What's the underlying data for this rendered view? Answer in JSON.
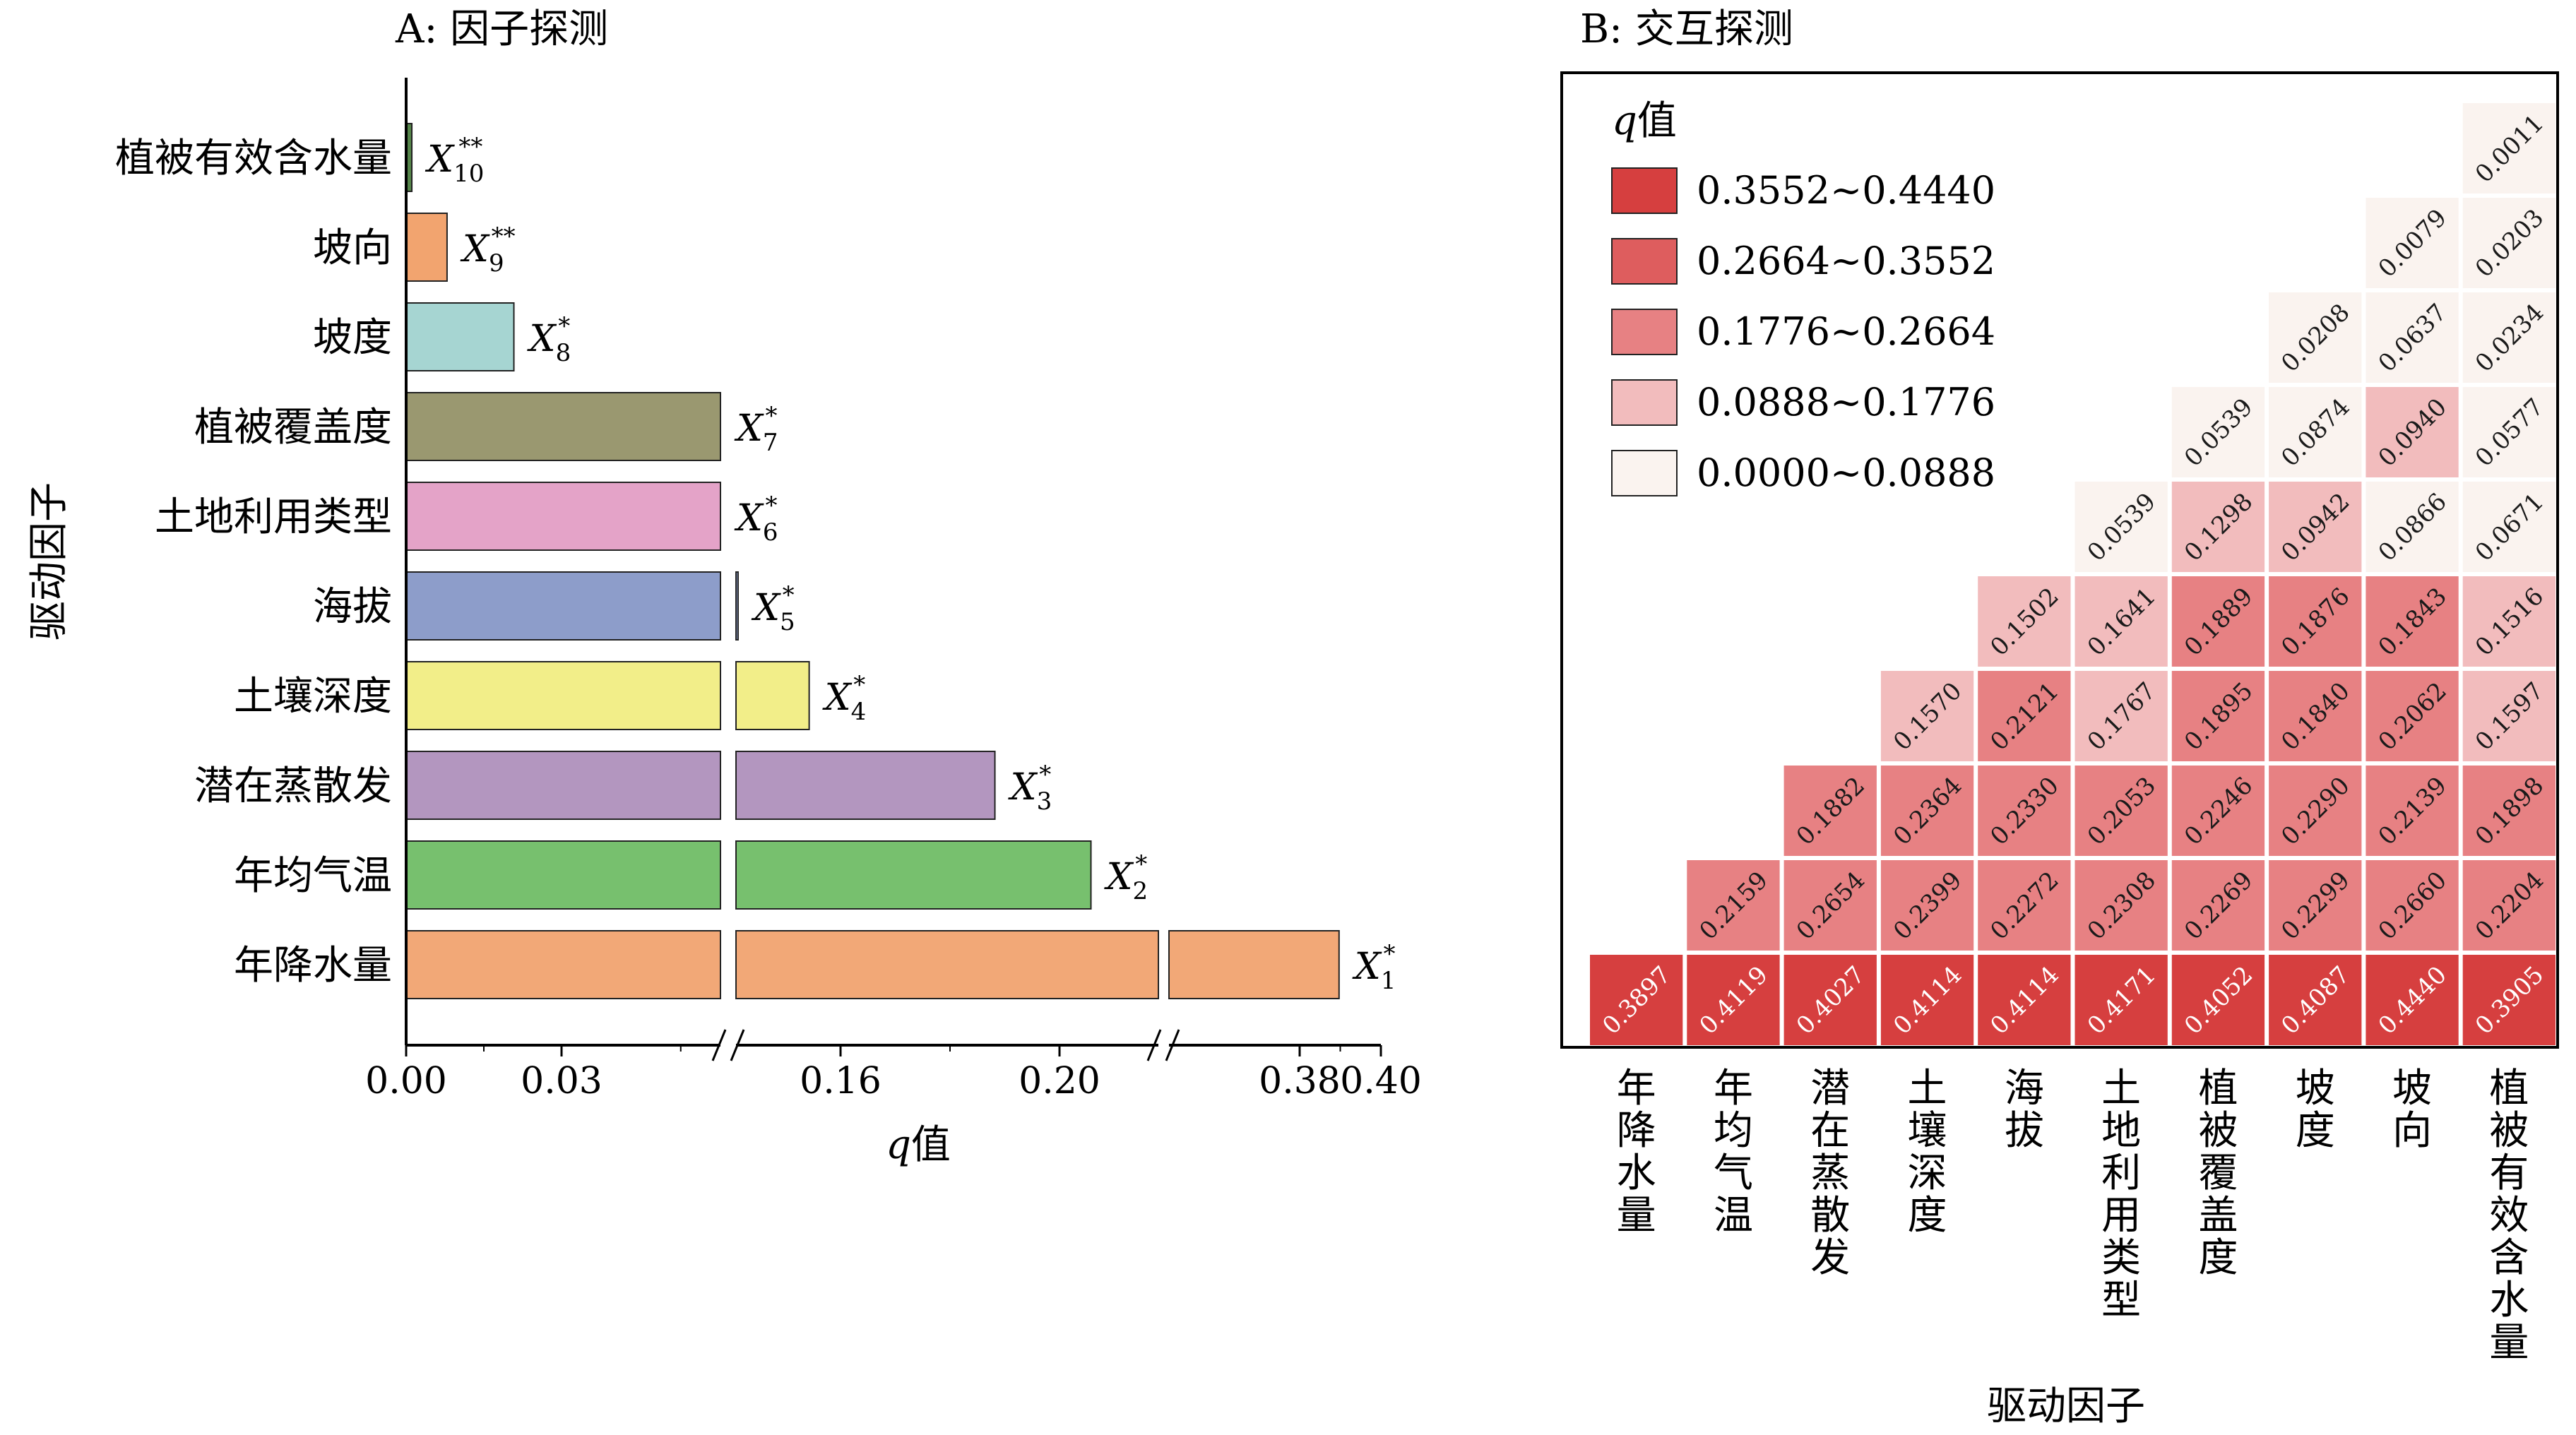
{
  "chart_data": [
    {
      "type": "bar",
      "orientation": "horizontal",
      "title": "A: 因子探测",
      "xlabel_italic": "q",
      "xlabel_suffix": "值",
      "ylabel": "驱动因子",
      "xlim": [
        0.0,
        0.4
      ],
      "axis_breaks": [
        [
          0.05,
          0.15
        ],
        [
          0.25,
          0.37
        ]
      ],
      "xticks": [
        "0.00",
        "0.03",
        "0.16",
        "0.20",
        "0.38",
        "0.40"
      ],
      "xtick_values": [
        0.0,
        0.03,
        0.16,
        0.2,
        0.38,
        0.4
      ],
      "break_mark": "//",
      "categories": [
        "植被有效含水量",
        "坡向",
        "坡度",
        "植被覆盖度",
        "土地利用类型",
        "海拔",
        "土壤深度",
        "潜在蒸散发",
        "年均气温",
        "年降水量"
      ],
      "values": [
        0.0011,
        0.0079,
        0.0208,
        0.0539,
        0.0539,
        0.1502,
        0.157,
        0.1882,
        0.2159,
        0.3897
      ],
      "colors": [
        "#55854a",
        "#f2a46f",
        "#a6d5d2",
        "#9a9870",
        "#e4a3c8",
        "#8d9dca",
        "#f2ee89",
        "#b396bf",
        "#77c06e",
        "#f2a877"
      ],
      "bar_labels": [
        {
          "base": "X",
          "sub": "10",
          "sup": "**"
        },
        {
          "base": "X",
          "sub": "9",
          "sup": "**"
        },
        {
          "base": "X",
          "sub": "8",
          "sup": "*"
        },
        {
          "base": "X",
          "sub": "7",
          "sup": "*"
        },
        {
          "base": "X",
          "sub": "6",
          "sup": "*"
        },
        {
          "base": "X",
          "sub": "5",
          "sup": "*"
        },
        {
          "base": "X",
          "sub": "4",
          "sup": "*"
        },
        {
          "base": "X",
          "sub": "3",
          "sup": "*"
        },
        {
          "base": "X",
          "sub": "2",
          "sup": "*"
        },
        {
          "base": "X",
          "sub": "1",
          "sup": "*"
        }
      ]
    },
    {
      "type": "heatmap",
      "title": "B: 交互探测",
      "xlabel": "驱动因子",
      "categories": [
        "年降水量",
        "年均气温",
        "潜在蒸散发",
        "土壤深度",
        "海拔",
        "土地利用类型",
        "植被覆盖度",
        "坡度",
        "坡向",
        "植被有效含水量"
      ],
      "matrix": [
        [
          "0.3897",
          "0.4119",
          "0.4027",
          "0.4114",
          "0.4114",
          "0.4171",
          "0.4052",
          "0.4087",
          "0.4440",
          "0.3905"
        ],
        [
          "0.2159",
          "0.2654",
          "0.2399",
          "0.2272",
          "0.2308",
          "0.2269",
          "0.2299",
          "0.2660",
          "0.2204"
        ],
        [
          "0.1882",
          "0.2364",
          "0.2330",
          "0.2053",
          "0.2246",
          "0.2290",
          "0.2139",
          "0.1898"
        ],
        [
          "0.1570",
          "0.2121",
          "0.1767",
          "0.1895",
          "0.1840",
          "0.2062",
          "0.1597"
        ],
        [
          "0.1502",
          "0.1641",
          "0.1889",
          "0.1876",
          "0.1843",
          "0.1516"
        ],
        [
          "0.0539",
          "0.1298",
          "0.0942",
          "0.0866",
          "0.0671"
        ],
        [
          "0.0539",
          "0.0874",
          "0.0940",
          "0.0577"
        ],
        [
          "0.0208",
          "0.0637",
          "0.0234"
        ],
        [
          "0.0079",
          "0.0203"
        ],
        [
          "0.0011"
        ]
      ],
      "legend": {
        "title_italic": "q",
        "title_suffix": "值",
        "placement": "top-left",
        "items": [
          {
            "label": "0.3552~0.4440",
            "color": "#d63f3f"
          },
          {
            "label": "0.2664~0.3552",
            "color": "#de5d5e"
          },
          {
            "label": "0.1776~0.2664",
            "color": "#e78183"
          },
          {
            "label": "0.0888~0.1776",
            "color": "#f2bcbd"
          },
          {
            "label": "0.0000~0.0888",
            "color": "#faf3ef"
          }
        ]
      }
    }
  ]
}
